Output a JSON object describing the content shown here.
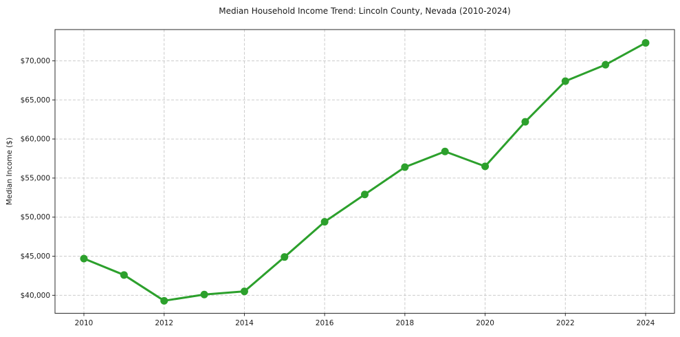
{
  "chart_data": {
    "type": "line",
    "title": "Median Household Income Trend: Lincoln County, Nevada (2010-2024)",
    "xlabel": "",
    "ylabel": "Median Income ($)",
    "x": [
      2010,
      2011,
      2012,
      2013,
      2014,
      2015,
      2016,
      2017,
      2018,
      2019,
      2020,
      2021,
      2022,
      2023,
      2024
    ],
    "series": [
      {
        "name": "Median Household Income",
        "values": [
          44700,
          42600,
          39300,
          40100,
          40500,
          44900,
          49400,
          52900,
          56400,
          58400,
          56500,
          62200,
          67400,
          69500,
          72300
        ]
      }
    ],
    "xlim": [
      2009.28,
      2024.72
    ],
    "ylim": [
      37700,
      74000
    ],
    "xticks": [
      2010,
      2012,
      2014,
      2016,
      2018,
      2020,
      2022,
      2024
    ],
    "yticks": [
      {
        "value": 40000,
        "label": "$40,000"
      },
      {
        "value": 45000,
        "label": "$45,000"
      },
      {
        "value": 50000,
        "label": "$50,000"
      },
      {
        "value": 55000,
        "label": "$55,000"
      },
      {
        "value": 60000,
        "label": "$60,000"
      },
      {
        "value": 65000,
        "label": "$65,000"
      },
      {
        "value": 70000,
        "label": "$70,000"
      }
    ],
    "grid": true,
    "grid_style": "dashed",
    "legend": false,
    "colors": {
      "line": "#2ca02c",
      "marker": "#2ca02c",
      "grid": "#cbcbcb",
      "spine": "#2b2b2b",
      "text": "#1a1a1a",
      "background": "#ffffff"
    }
  }
}
